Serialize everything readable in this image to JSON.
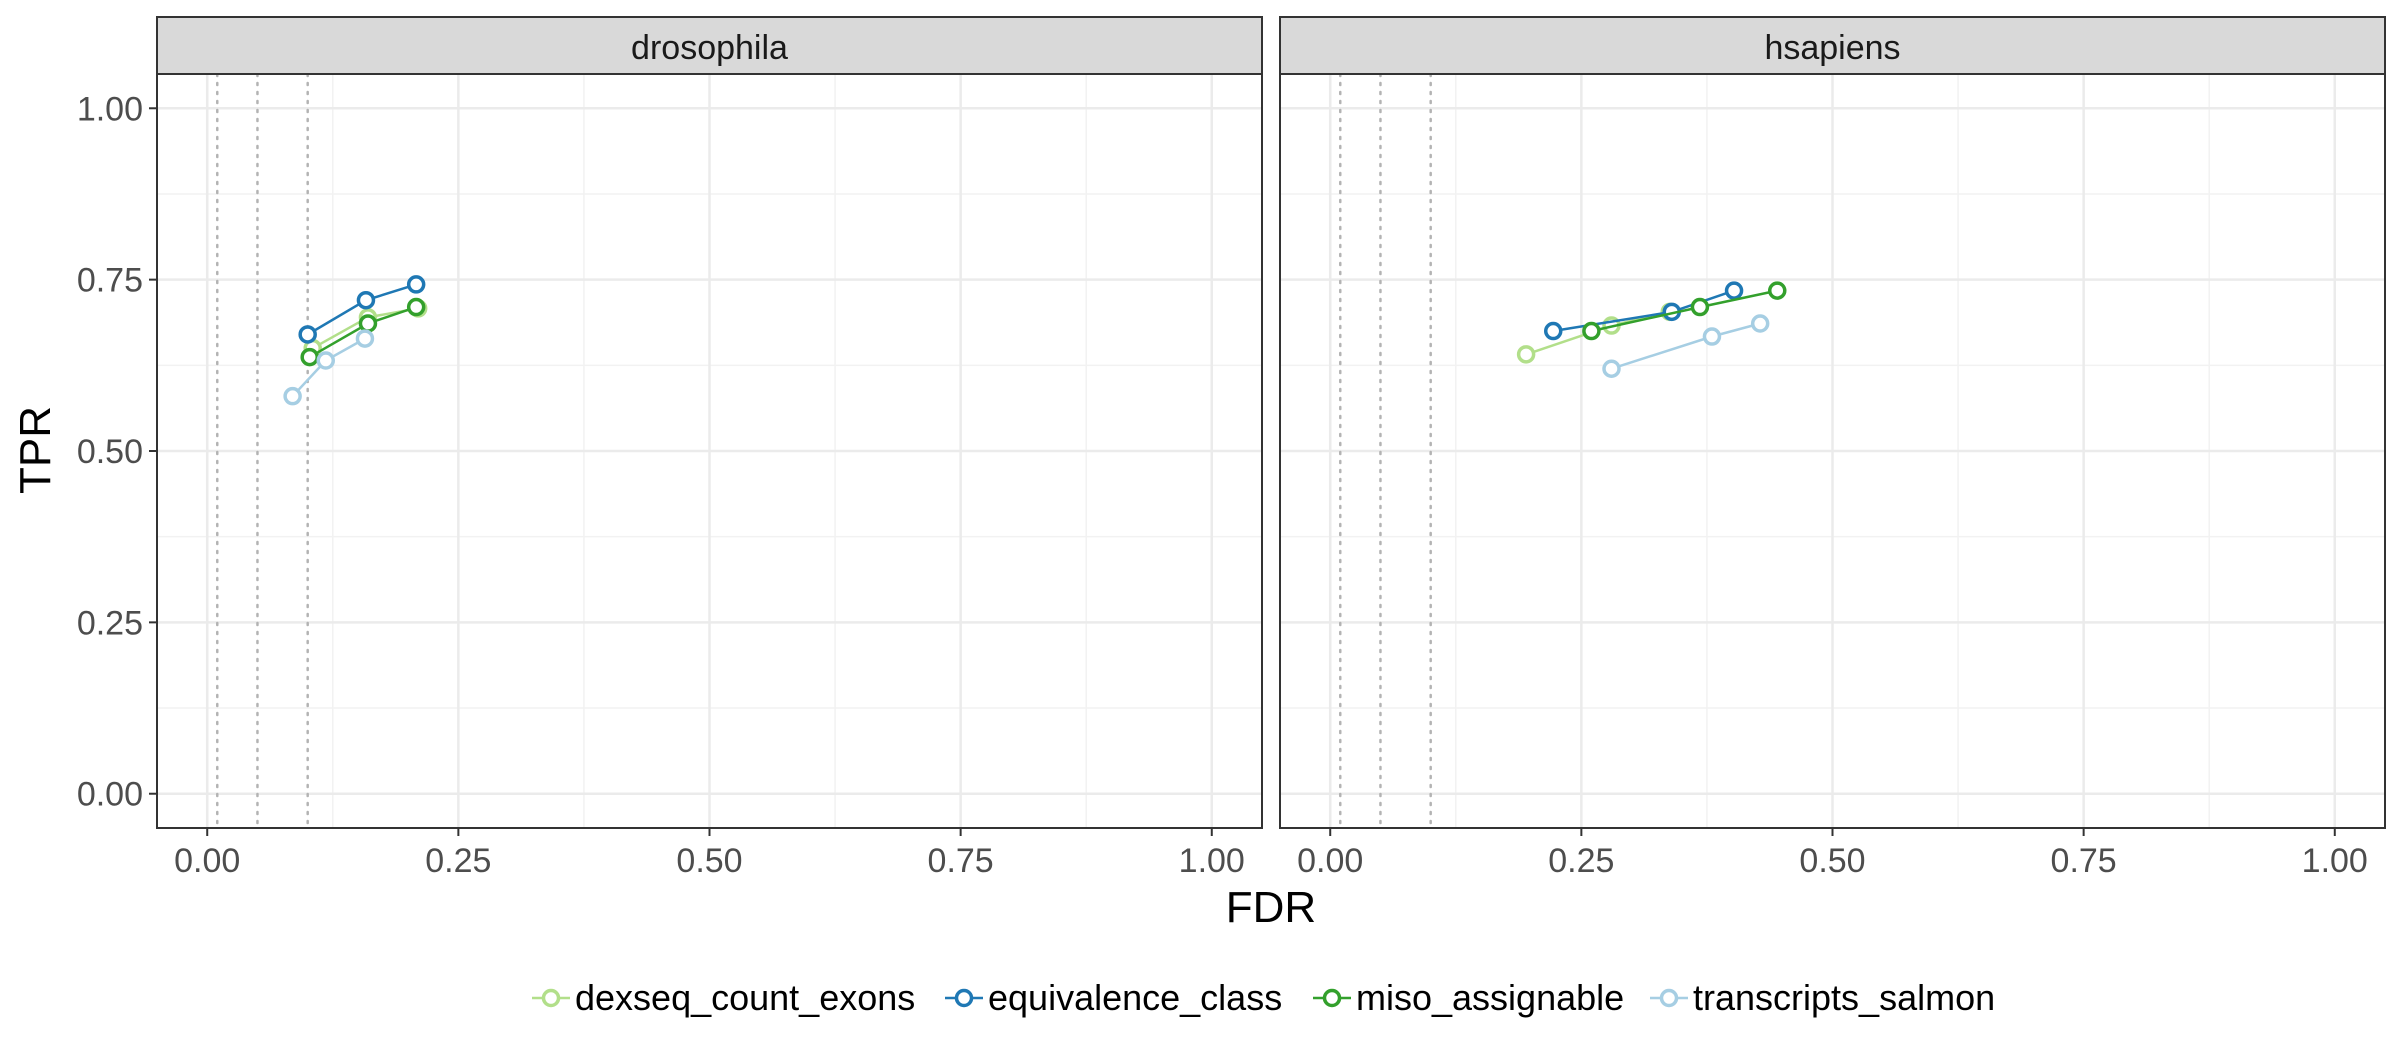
{
  "chart_data": {
    "type": "line",
    "xlabel": "FDR",
    "ylabel": "TPR",
    "xlim": [
      -0.05,
      1.05
    ],
    "ylim": [
      -0.05,
      1.05
    ],
    "x_ticks": [
      0.0,
      0.25,
      0.5,
      0.75,
      1.0
    ],
    "x_tick_labels": [
      "0.00",
      "0.25",
      "0.50",
      "0.75",
      "1.00"
    ],
    "y_ticks": [
      0.0,
      0.25,
      0.5,
      0.75,
      1.0
    ],
    "y_tick_labels": [
      "0.00",
      "0.25",
      "0.50",
      "0.75",
      "1.00"
    ],
    "reference_lines_x": [
      0.01,
      0.05,
      0.1
    ],
    "grid": true,
    "legend_position": "bottom",
    "colors": {
      "dexseq_count_exons": "#b2df8a",
      "equivalence_class": "#1f78b4",
      "miso_assignable": "#33a02c",
      "transcripts_salmon": "#a6cee3"
    },
    "legend": [
      {
        "name": "dexseq_count_exons",
        "color": "#b2df8a"
      },
      {
        "name": "equivalence_class",
        "color": "#1f78b4"
      },
      {
        "name": "miso_assignable",
        "color": "#33a02c"
      },
      {
        "name": "transcripts_salmon",
        "color": "#a6cee3"
      }
    ],
    "panels": [
      {
        "title": "drosophila",
        "series": [
          {
            "name": "dexseq_count_exons",
            "points": [
              [
                0.105,
                0.65
              ],
              [
                0.16,
                0.695
              ],
              [
                0.21,
                0.708
              ]
            ]
          },
          {
            "name": "equivalence_class",
            "points": [
              [
                0.1,
                0.67
              ],
              [
                0.158,
                0.72
              ],
              [
                0.208,
                0.743
              ]
            ]
          },
          {
            "name": "miso_assignable",
            "points": [
              [
                0.102,
                0.637
              ],
              [
                0.16,
                0.686
              ],
              [
                0.208,
                0.71
              ]
            ]
          },
          {
            "name": "transcripts_salmon",
            "points": [
              [
                0.085,
                0.58
              ],
              [
                0.118,
                0.632
              ],
              [
                0.157,
                0.664
              ]
            ]
          }
        ]
      },
      {
        "title": "hsapiens",
        "series": [
          {
            "name": "dexseq_count_exons",
            "points": [
              [
                0.195,
                0.641
              ],
              [
                0.28,
                0.683
              ],
              [
                0.338,
                0.703
              ]
            ]
          },
          {
            "name": "equivalence_class",
            "points": [
              [
                0.222,
                0.675
              ],
              [
                0.34,
                0.703
              ],
              [
                0.402,
                0.734
              ]
            ]
          },
          {
            "name": "miso_assignable",
            "points": [
              [
                0.26,
                0.675
              ],
              [
                0.368,
                0.71
              ],
              [
                0.445,
                0.734
              ]
            ]
          },
          {
            "name": "transcripts_salmon",
            "points": [
              [
                0.28,
                0.62
              ],
              [
                0.38,
                0.667
              ],
              [
                0.428,
                0.686
              ]
            ]
          }
        ]
      }
    ]
  }
}
